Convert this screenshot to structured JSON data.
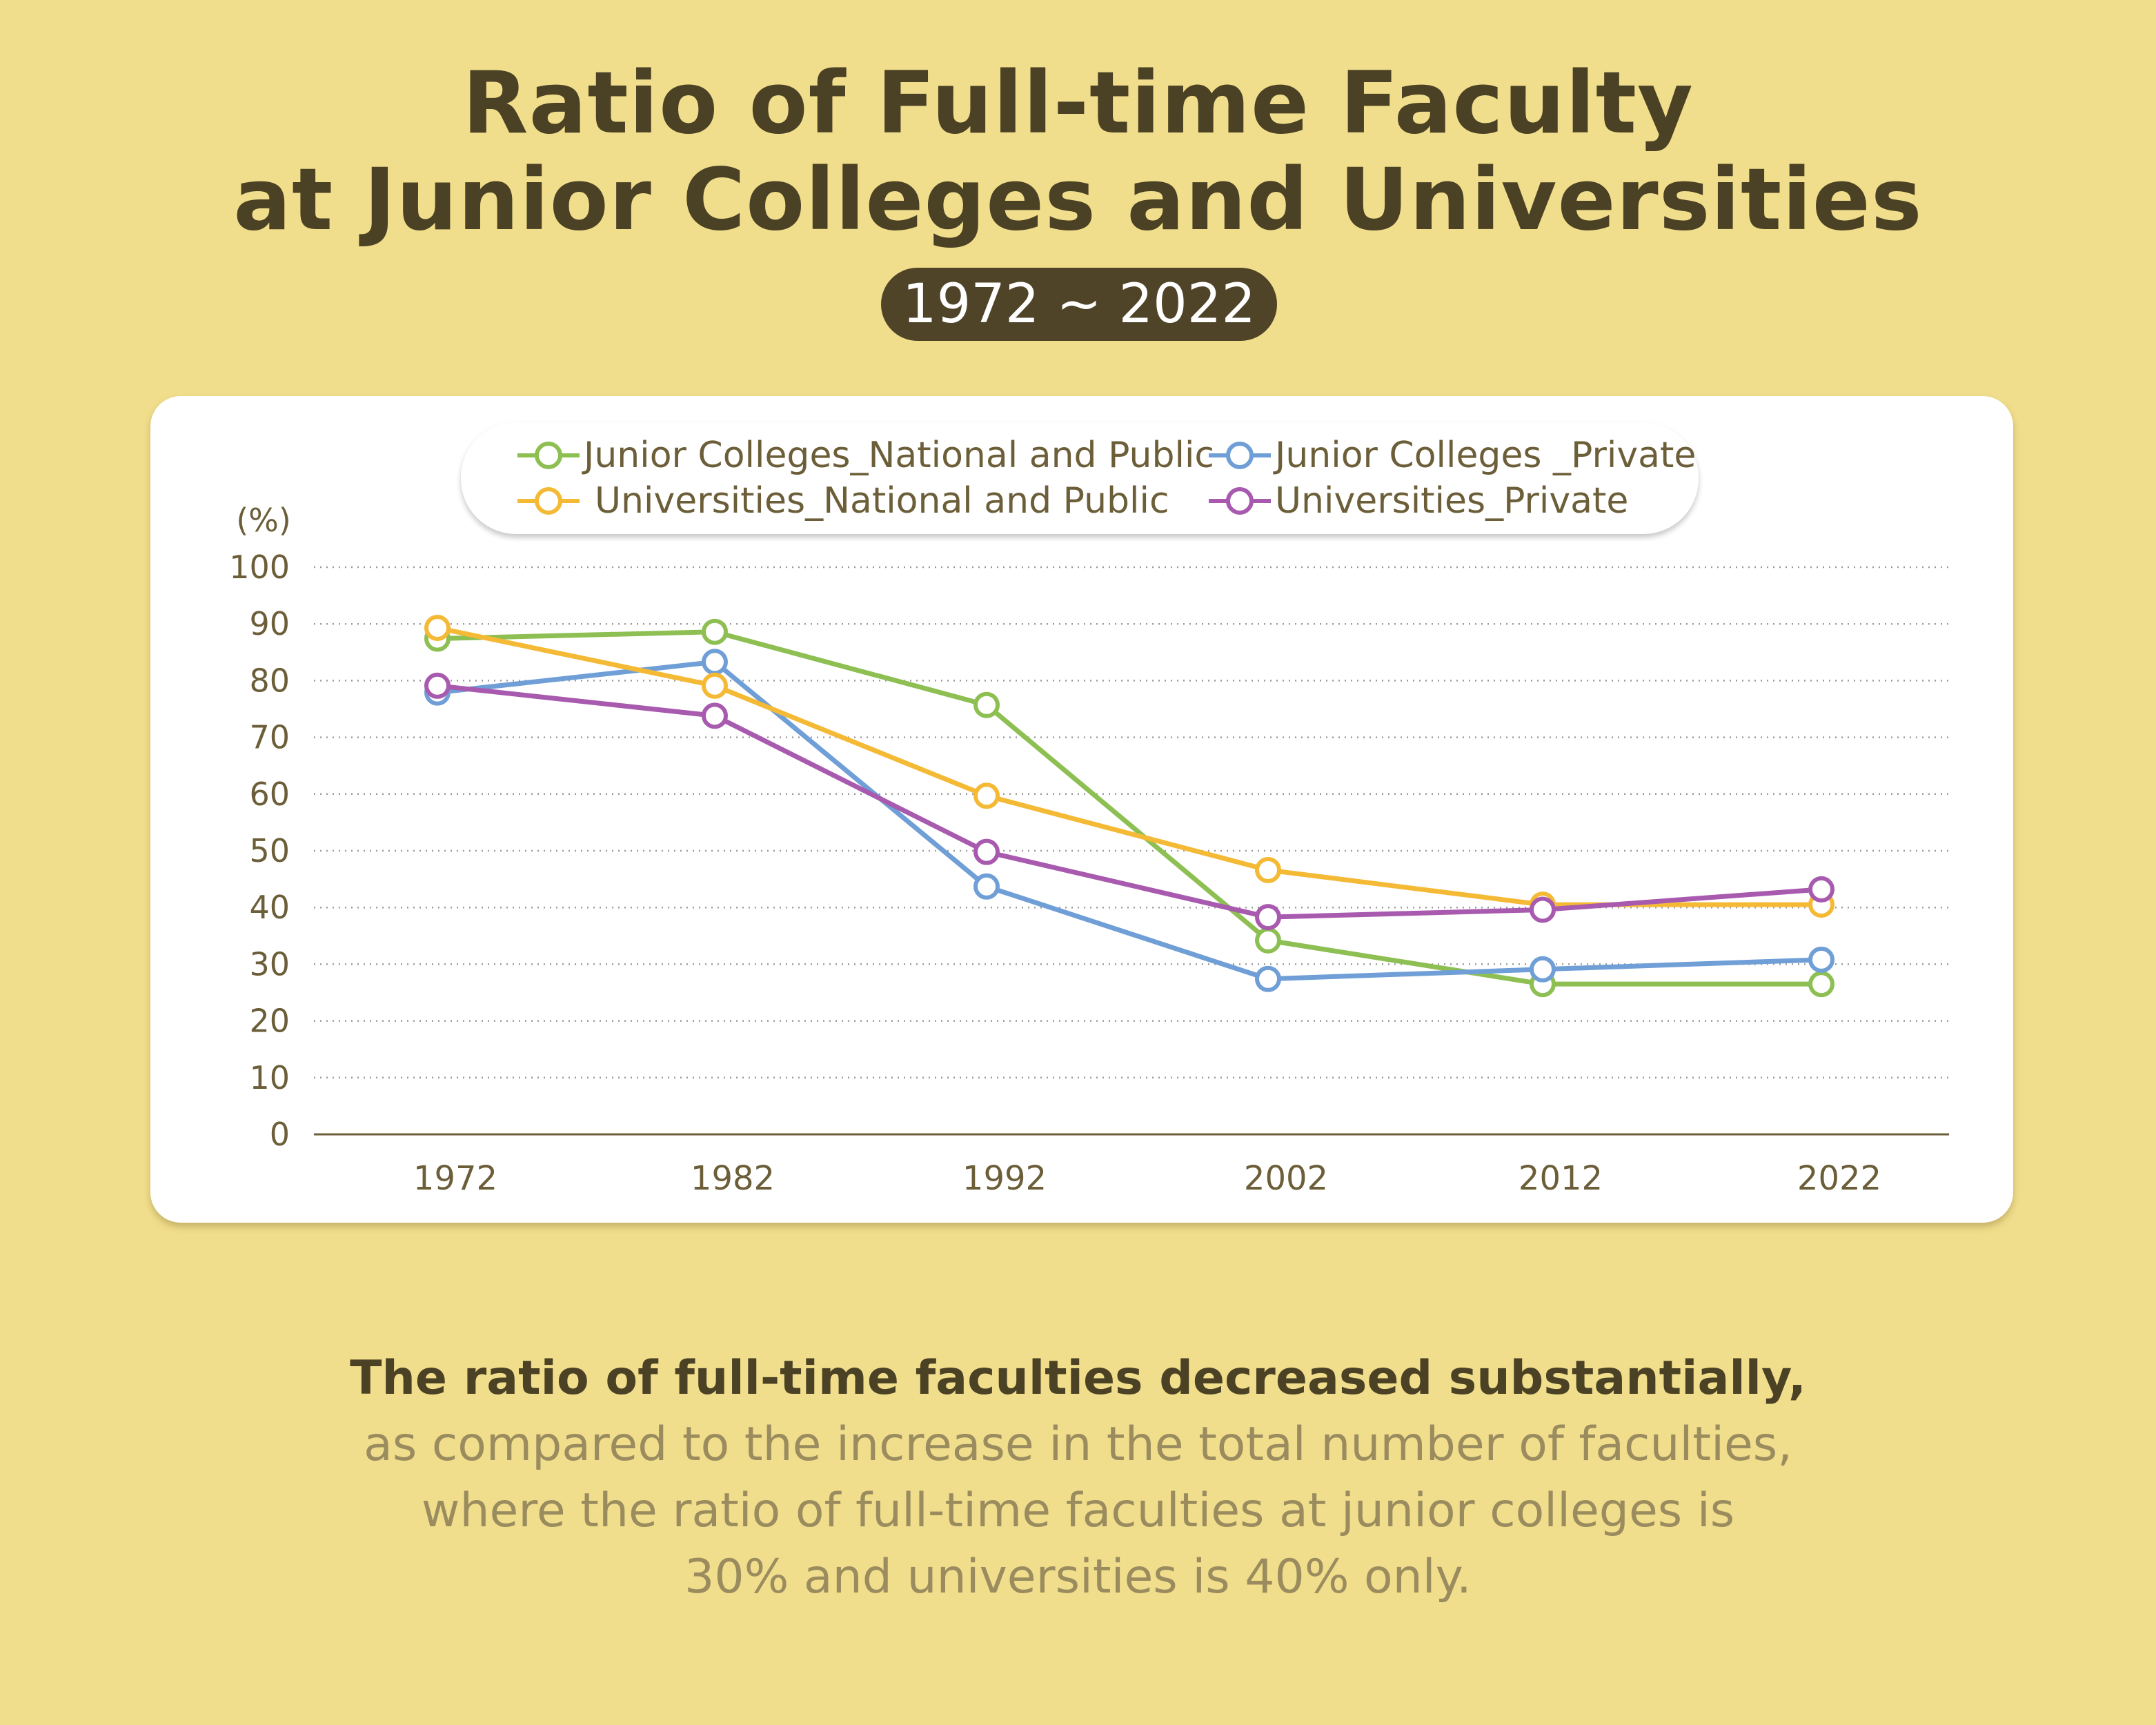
{
  "title_line1": "Ratio of Full-time Faculty",
  "title_line2": "at Junior Colleges and Universities",
  "period": "1972 ~ 2022",
  "caption": {
    "lead": "The ratio of full-time faculties decreased substantially,",
    "line2": "as compared to the increase in the total number of faculties,",
    "line3": "where the ratio of full-time faculties at junior colleges is",
    "line4": "30% and universities is 40% only."
  },
  "chart_data": {
    "type": "line",
    "title": "Ratio of Full-time Faculty at Junior Colleges and Universities",
    "ylabel": "(%)",
    "xlabel": "",
    "ylim": [
      0,
      100
    ],
    "yticks": [
      "0",
      "10",
      "20",
      "30",
      "40",
      "50",
      "60",
      "70",
      "80",
      "90",
      "100"
    ],
    "categories": [
      "1972",
      "1982",
      "1992",
      "2002",
      "2012",
      "2022"
    ],
    "grid": true,
    "legend_position": "top-center",
    "series": [
      {
        "name": "Junior Colleges_National and Public",
        "color": "#8dbf52",
        "values": [
          87.4,
          88.6,
          75.7,
          34.2,
          26.5,
          26.5
        ]
      },
      {
        "name": "Junior Colleges _Private",
        "color": "#6f9fd6",
        "values": [
          77.9,
          83.3,
          43.7,
          27.4,
          29.1,
          30.8
        ]
      },
      {
        "name": "Universities_National and Public",
        "color": "#f4ba36",
        "values": [
          89.3,
          79.1,
          59.7,
          46.6,
          40.5,
          40.5
        ]
      },
      {
        "name": "Universities_Private",
        "color": "#a85aaf",
        "values": [
          79.1,
          73.8,
          49.8,
          38.3,
          39.6,
          43.2
        ]
      }
    ]
  }
}
